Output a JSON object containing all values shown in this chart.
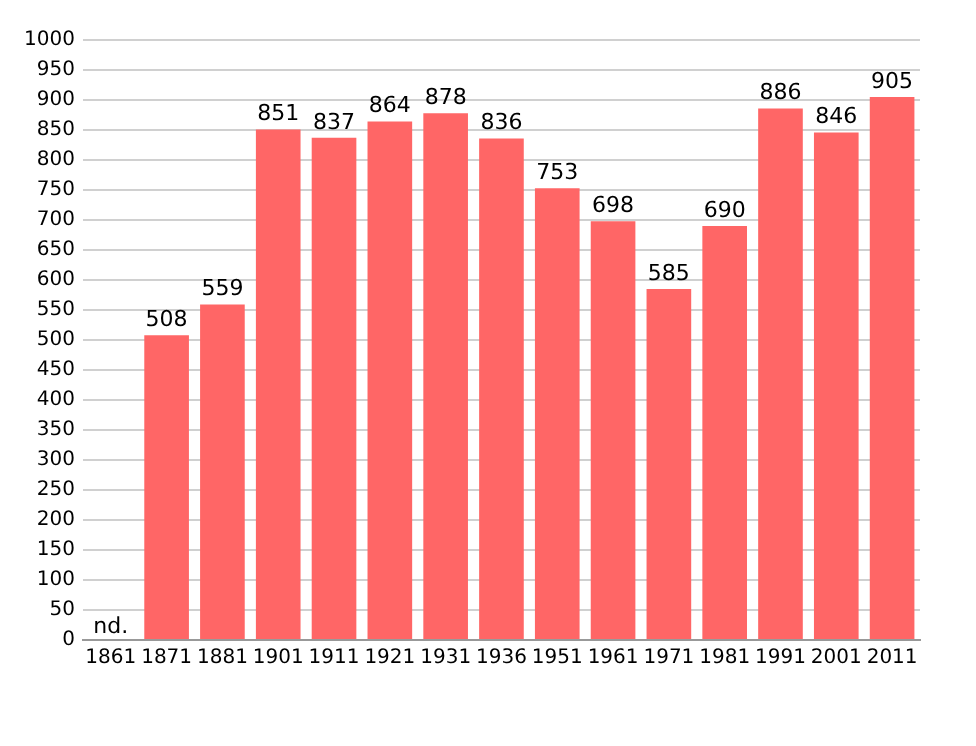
{
  "chart_data": {
    "type": "bar",
    "categories": [
      "1861",
      "1871",
      "1881",
      "1901",
      "1911",
      "1921",
      "1931",
      "1936",
      "1951",
      "1961",
      "1971",
      "1981",
      "1991",
      "2001",
      "2011"
    ],
    "values": [
      null,
      508,
      559,
      851,
      837,
      864,
      878,
      836,
      753,
      698,
      585,
      690,
      886,
      846,
      905
    ],
    "value_labels": [
      "nd.",
      "508",
      "559",
      "851",
      "837",
      "864",
      "878",
      "836",
      "753",
      "698",
      "585",
      "690",
      "886",
      "846",
      "905"
    ],
    "color": "#ff6666",
    "ylim": [
      0,
      1000
    ],
    "yticks": [
      0,
      50,
      100,
      150,
      200,
      250,
      300,
      350,
      400,
      450,
      500,
      550,
      600,
      650,
      700,
      750,
      800,
      850,
      900,
      950,
      1000
    ],
    "grid": "y",
    "legend": false
  }
}
